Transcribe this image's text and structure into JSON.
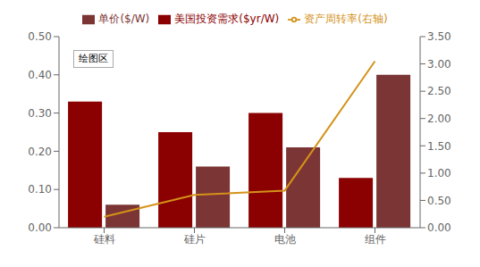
{
  "chart_data": {
    "type": "bar",
    "categories": [
      "硅料",
      "硅片",
      "电池",
      "组件"
    ],
    "series": [
      {
        "name": "美国投资需求($yr/W)",
        "type": "bar",
        "color": "#8B0000",
        "values": [
          0.33,
          0.25,
          0.3,
          0.13
        ]
      },
      {
        "name": "单价($/W)",
        "type": "bar",
        "color": "#7B3535",
        "values": [
          0.06,
          0.16,
          0.21,
          0.4
        ]
      },
      {
        "name": "资产周转率(右轴)",
        "type": "line",
        "axis": "y2",
        "color": "#D4921A",
        "values": [
          0.2,
          0.6,
          0.68,
          3.05
        ]
      }
    ],
    "ylim": [
      0.0,
      0.5
    ],
    "yticks": [
      {
        "value": 0.0,
        "label": "0.00"
      },
      {
        "value": 0.1,
        "label": "0.10"
      },
      {
        "value": 0.2,
        "label": "0.20"
      },
      {
        "value": 0.3,
        "label": "0.30"
      },
      {
        "value": 0.4,
        "label": "0.40"
      },
      {
        "value": 0.5,
        "label": "0.50"
      }
    ],
    "y2lim": [
      0.0,
      3.5
    ],
    "y2ticks": [
      {
        "value": 0.0,
        "label": "0.00"
      },
      {
        "value": 0.5,
        "label": "0.50"
      },
      {
        "value": 1.0,
        "label": "1.00"
      },
      {
        "value": 1.5,
        "label": "1.50"
      },
      {
        "value": 2.0,
        "label": "2.00"
      },
      {
        "value": 2.5,
        "label": "2.50"
      },
      {
        "value": 3.0,
        "label": "3.00"
      },
      {
        "value": 3.5,
        "label": "3.50"
      }
    ],
    "annotations": [
      "绘图区"
    ],
    "legend": "top",
    "grid": false
  }
}
